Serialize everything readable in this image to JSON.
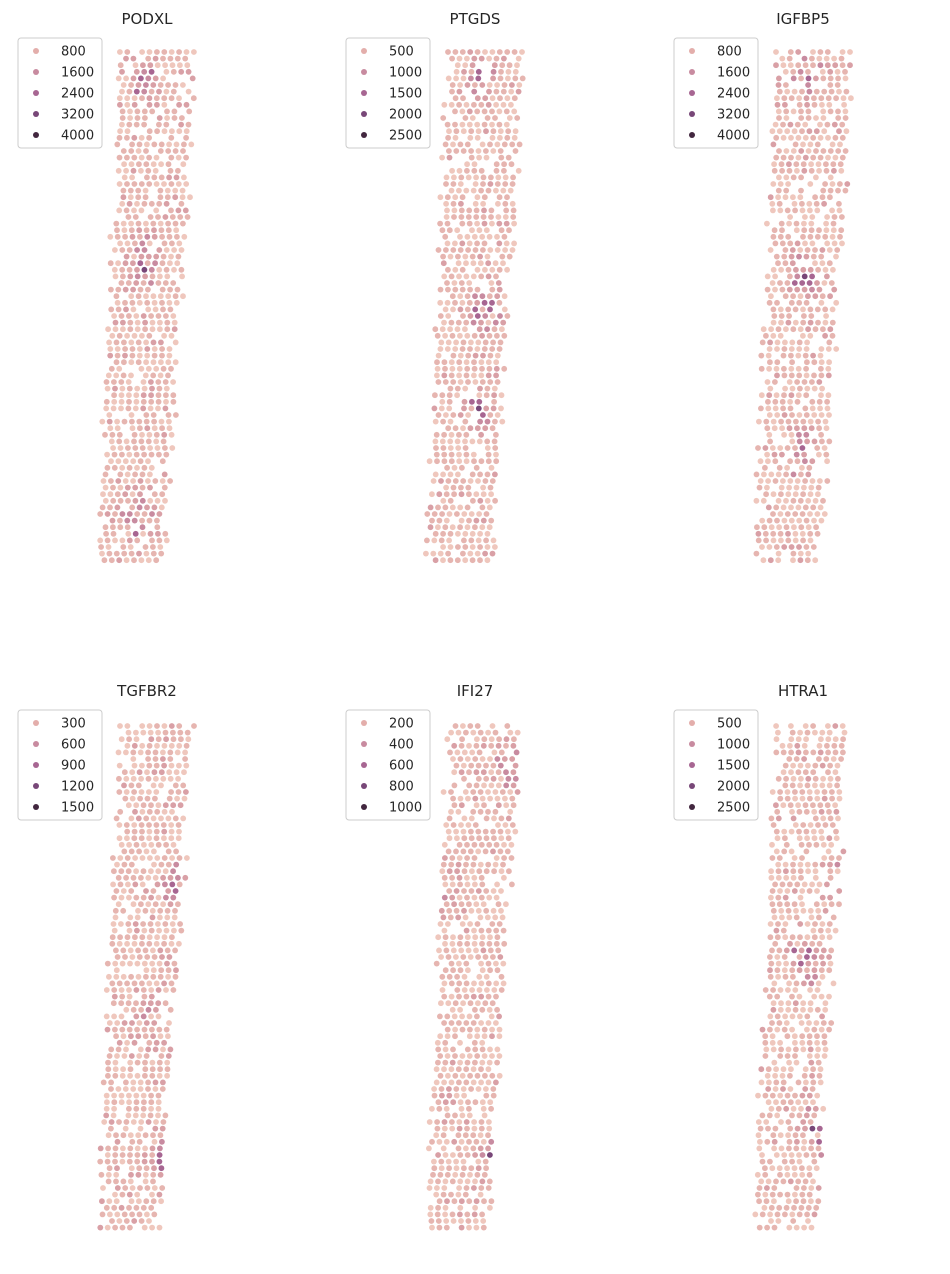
{
  "chart_data": [
    {
      "type": "scatter",
      "title": "PODXL",
      "legend": {
        "placement": "upper-left",
        "entries": [
          {
            "label": "800",
            "color": "#e3aeab"
          },
          {
            "label": "1600",
            "color": "#c88ba0"
          },
          {
            "label": "2400",
            "color": "#a76692"
          },
          {
            "label": "3200",
            "color": "#784778"
          },
          {
            "label": "4000",
            "color": "#42273f"
          }
        ]
      },
      "axes_visible": false,
      "grid": false,
      "points": {
        "seed": 11,
        "profile": "podxl",
        "hot_spots": [
          [
            0.45,
            0.41
          ],
          [
            0.38,
            0.9
          ],
          [
            0.47,
            0.06
          ]
        ]
      }
    },
    {
      "type": "scatter",
      "title": "PTGDS",
      "legend": {
        "placement": "upper-left",
        "entries": [
          {
            "label": "500",
            "color": "#e3aeab"
          },
          {
            "label": "1000",
            "color": "#c88ba0"
          },
          {
            "label": "1500",
            "color": "#a76692"
          },
          {
            "label": "2000",
            "color": "#784778"
          },
          {
            "label": "2500",
            "color": "#42273f"
          }
        ]
      },
      "axes_visible": false,
      "grid": false,
      "points": {
        "seed": 23,
        "profile": "ptgds",
        "hot_spots": [
          [
            0.57,
            0.05
          ],
          [
            0.58,
            0.5
          ],
          [
            0.5,
            0.7
          ]
        ]
      }
    },
    {
      "type": "scatter",
      "title": "IGFBP5",
      "legend": {
        "placement": "upper-left",
        "entries": [
          {
            "label": "800",
            "color": "#e3aeab"
          },
          {
            "label": "1600",
            "color": "#c88ba0"
          },
          {
            "label": "2400",
            "color": "#a76692"
          },
          {
            "label": "3200",
            "color": "#784778"
          },
          {
            "label": "4000",
            "color": "#42273f"
          }
        ]
      },
      "axes_visible": false,
      "grid": false,
      "points": {
        "seed": 37,
        "profile": "igfbp5",
        "hot_spots": [
          [
            0.5,
            0.04
          ],
          [
            0.48,
            0.44
          ],
          [
            0.45,
            0.78
          ]
        ]
      }
    },
    {
      "type": "scatter",
      "title": "TGFBR2",
      "legend": {
        "placement": "upper-left",
        "entries": [
          {
            "label": "300",
            "color": "#e3aeab"
          },
          {
            "label": "600",
            "color": "#c88ba0"
          },
          {
            "label": "900",
            "color": "#a76692"
          },
          {
            "label": "1200",
            "color": "#784778"
          },
          {
            "label": "1500",
            "color": "#42273f"
          }
        ]
      },
      "axes_visible": false,
      "grid": false,
      "points": {
        "seed": 41,
        "profile": "tgfbr2",
        "hot_spots": [
          [
            0.82,
            0.32
          ],
          [
            0.5,
            0.58
          ],
          [
            0.62,
            0.85
          ]
        ]
      }
    },
    {
      "type": "scatter",
      "title": "IFI27",
      "legend": {
        "placement": "upper-left",
        "entries": [
          {
            "label": "200",
            "color": "#e3aeab"
          },
          {
            "label": "400",
            "color": "#c88ba0"
          },
          {
            "label": "600",
            "color": "#a76692"
          },
          {
            "label": "800",
            "color": "#784778"
          },
          {
            "label": "1000",
            "color": "#42273f"
          }
        ]
      },
      "axes_visible": false,
      "grid": false,
      "points": {
        "seed": 53,
        "profile": "ifi27",
        "hot_spots": [
          [
            0.25,
            0.31
          ],
          [
            0.85,
            0.08
          ],
          [
            0.7,
            0.85
          ]
        ]
      }
    },
    {
      "type": "scatter",
      "title": "HTRA1",
      "legend": {
        "placement": "upper-left",
        "entries": [
          {
            "label": "500",
            "color": "#e3aeab"
          },
          {
            "label": "1000",
            "color": "#c88ba0"
          },
          {
            "label": "1500",
            "color": "#a76692"
          },
          {
            "label": "2000",
            "color": "#784778"
          },
          {
            "label": "2500",
            "color": "#42273f"
          }
        ]
      },
      "axes_visible": false,
      "grid": false,
      "points": {
        "seed": 67,
        "profile": "htra1",
        "hot_spots": [
          [
            0.85,
            0.3
          ],
          [
            0.52,
            0.46
          ],
          [
            0.6,
            0.8
          ]
        ]
      }
    }
  ]
}
